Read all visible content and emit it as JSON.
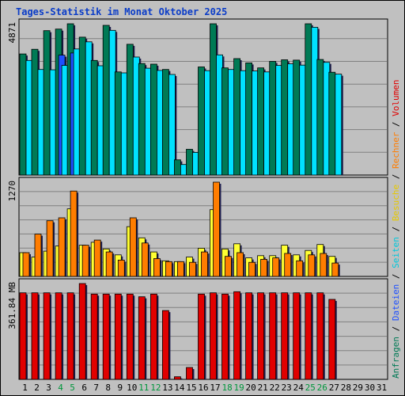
{
  "title": "Tages-Statistik im Monat Oktober 2025",
  "chart_data": [
    {
      "type": "bar",
      "panel": "top",
      "categories": [
        "1",
        "2",
        "3",
        "4",
        "5",
        "6",
        "7",
        "8",
        "9",
        "10",
        "11",
        "12",
        "13",
        "14",
        "15",
        "16",
        "17",
        "18",
        "19",
        "20",
        "21",
        "22",
        "23",
        "24",
        "25",
        "26",
        "27",
        "28",
        "29",
        "30",
        "31"
      ],
      "ymax_label": "4871",
      "ylim": [
        0,
        4871
      ],
      "series": [
        {
          "name": "Anfragen",
          "color": "#007a55",
          "values": [
            3900,
            4050,
            4650,
            4700,
            4871,
            4440,
            3690,
            4820,
            3320,
            4210,
            3590,
            3570,
            3400,
            490,
            830,
            3480,
            4871,
            3450,
            3750,
            3610,
            3450,
            3660,
            3710,
            3700,
            4871,
            3720,
            3310,
            0,
            0,
            0,
            0
          ]
        },
        {
          "name": "Dateien",
          "color": "#1e50ff",
          "values": [
            0,
            0,
            0,
            3860,
            3930,
            0,
            0,
            0,
            0,
            0,
            0,
            0,
            0,
            0,
            0,
            0,
            0,
            0,
            0,
            0,
            0,
            0,
            0,
            0,
            0,
            0,
            0,
            0,
            0,
            0,
            0
          ]
        },
        {
          "name": "Seiten",
          "color": "#00e1ff",
          "values": [
            3690,
            3400,
            3390,
            3530,
            4060,
            4290,
            3520,
            4660,
            3290,
            3800,
            3440,
            3370,
            3240,
            340,
            730,
            3360,
            3870,
            3400,
            3360,
            3350,
            3320,
            3530,
            3580,
            3540,
            4760,
            3630,
            3250,
            0,
            0,
            0,
            0
          ]
        }
      ]
    },
    {
      "type": "bar",
      "panel": "middle",
      "categories": [
        "1",
        "2",
        "3",
        "4",
        "5",
        "6",
        "7",
        "8",
        "9",
        "10",
        "11",
        "12",
        "13",
        "14",
        "15",
        "16",
        "17",
        "18",
        "19",
        "20",
        "21",
        "22",
        "23",
        "24",
        "25",
        "26",
        "27",
        "28",
        "29",
        "30",
        "31"
      ],
      "ymax_label": "1270",
      "ylim": [
        0,
        1270
      ],
      "series": [
        {
          "name": "Besuche",
          "color": "#ffff32",
          "values": [
            320,
            260,
            340,
            410,
            910,
            420,
            460,
            370,
            290,
            670,
            520,
            330,
            210,
            200,
            260,
            380,
            900,
            370,
            440,
            250,
            280,
            280,
            420,
            290,
            350,
            430,
            270,
            0,
            0,
            0,
            0
          ]
        },
        {
          "name": "Rechner",
          "color": "#ff7d00",
          "values": [
            320,
            570,
            750,
            790,
            1150,
            420,
            490,
            330,
            220,
            790,
            450,
            240,
            200,
            200,
            190,
            330,
            1270,
            270,
            320,
            190,
            230,
            250,
            310,
            210,
            290,
            310,
            180,
            0,
            0,
            0,
            0
          ]
        }
      ]
    },
    {
      "type": "bar",
      "panel": "bottom",
      "categories": [
        "1",
        "2",
        "3",
        "4",
        "5",
        "6",
        "7",
        "8",
        "9",
        "10",
        "11",
        "12",
        "13",
        "14",
        "15",
        "16",
        "17",
        "18",
        "19",
        "20",
        "21",
        "22",
        "23",
        "24",
        "25",
        "26",
        "27",
        "28",
        "29",
        "30",
        "31"
      ],
      "ymax_label": "361.84 MB",
      "ylim": [
        0,
        361.84
      ],
      "series": [
        {
          "name": "Volumen",
          "color": "#e10000",
          "values": [
            327,
            327,
            327,
            327,
            327,
            361.84,
            322,
            322,
            322,
            322,
            312,
            322,
            260,
            10,
            45,
            322,
            327,
            322,
            331,
            327,
            327,
            327,
            327,
            327,
            327,
            327,
            302,
            0,
            0,
            0,
            0
          ]
        }
      ]
    }
  ],
  "weekend_days": [
    "4",
    "5",
    "11",
    "12",
    "18",
    "19",
    "25",
    "26"
  ],
  "legend_right": {
    "top": [
      {
        "text": "Anfragen",
        "color": "#007a55"
      },
      {
        "text": " / ",
        "color": "#000000"
      },
      {
        "text": "Dateien",
        "color": "#1e50ff"
      },
      {
        "text": " / ",
        "color": "#000000"
      },
      {
        "text": "Seiten",
        "color": "#00c8dc"
      },
      {
        "text": " / ",
        "color": "#000000"
      },
      {
        "text": "Besuche",
        "color": "#e6c800"
      },
      {
        "text": " / ",
        "color": "#000000"
      },
      {
        "text": "Rechner",
        "color": "#ff7d00"
      },
      {
        "text": " / ",
        "color": "#000000"
      },
      {
        "text": "Volumen",
        "color": "#e10000"
      }
    ]
  },
  "colors": {
    "panel_bg": "#c0c0c0",
    "grid": "#808080",
    "weekend": "#00963c",
    "title": "#0a3cc8"
  }
}
